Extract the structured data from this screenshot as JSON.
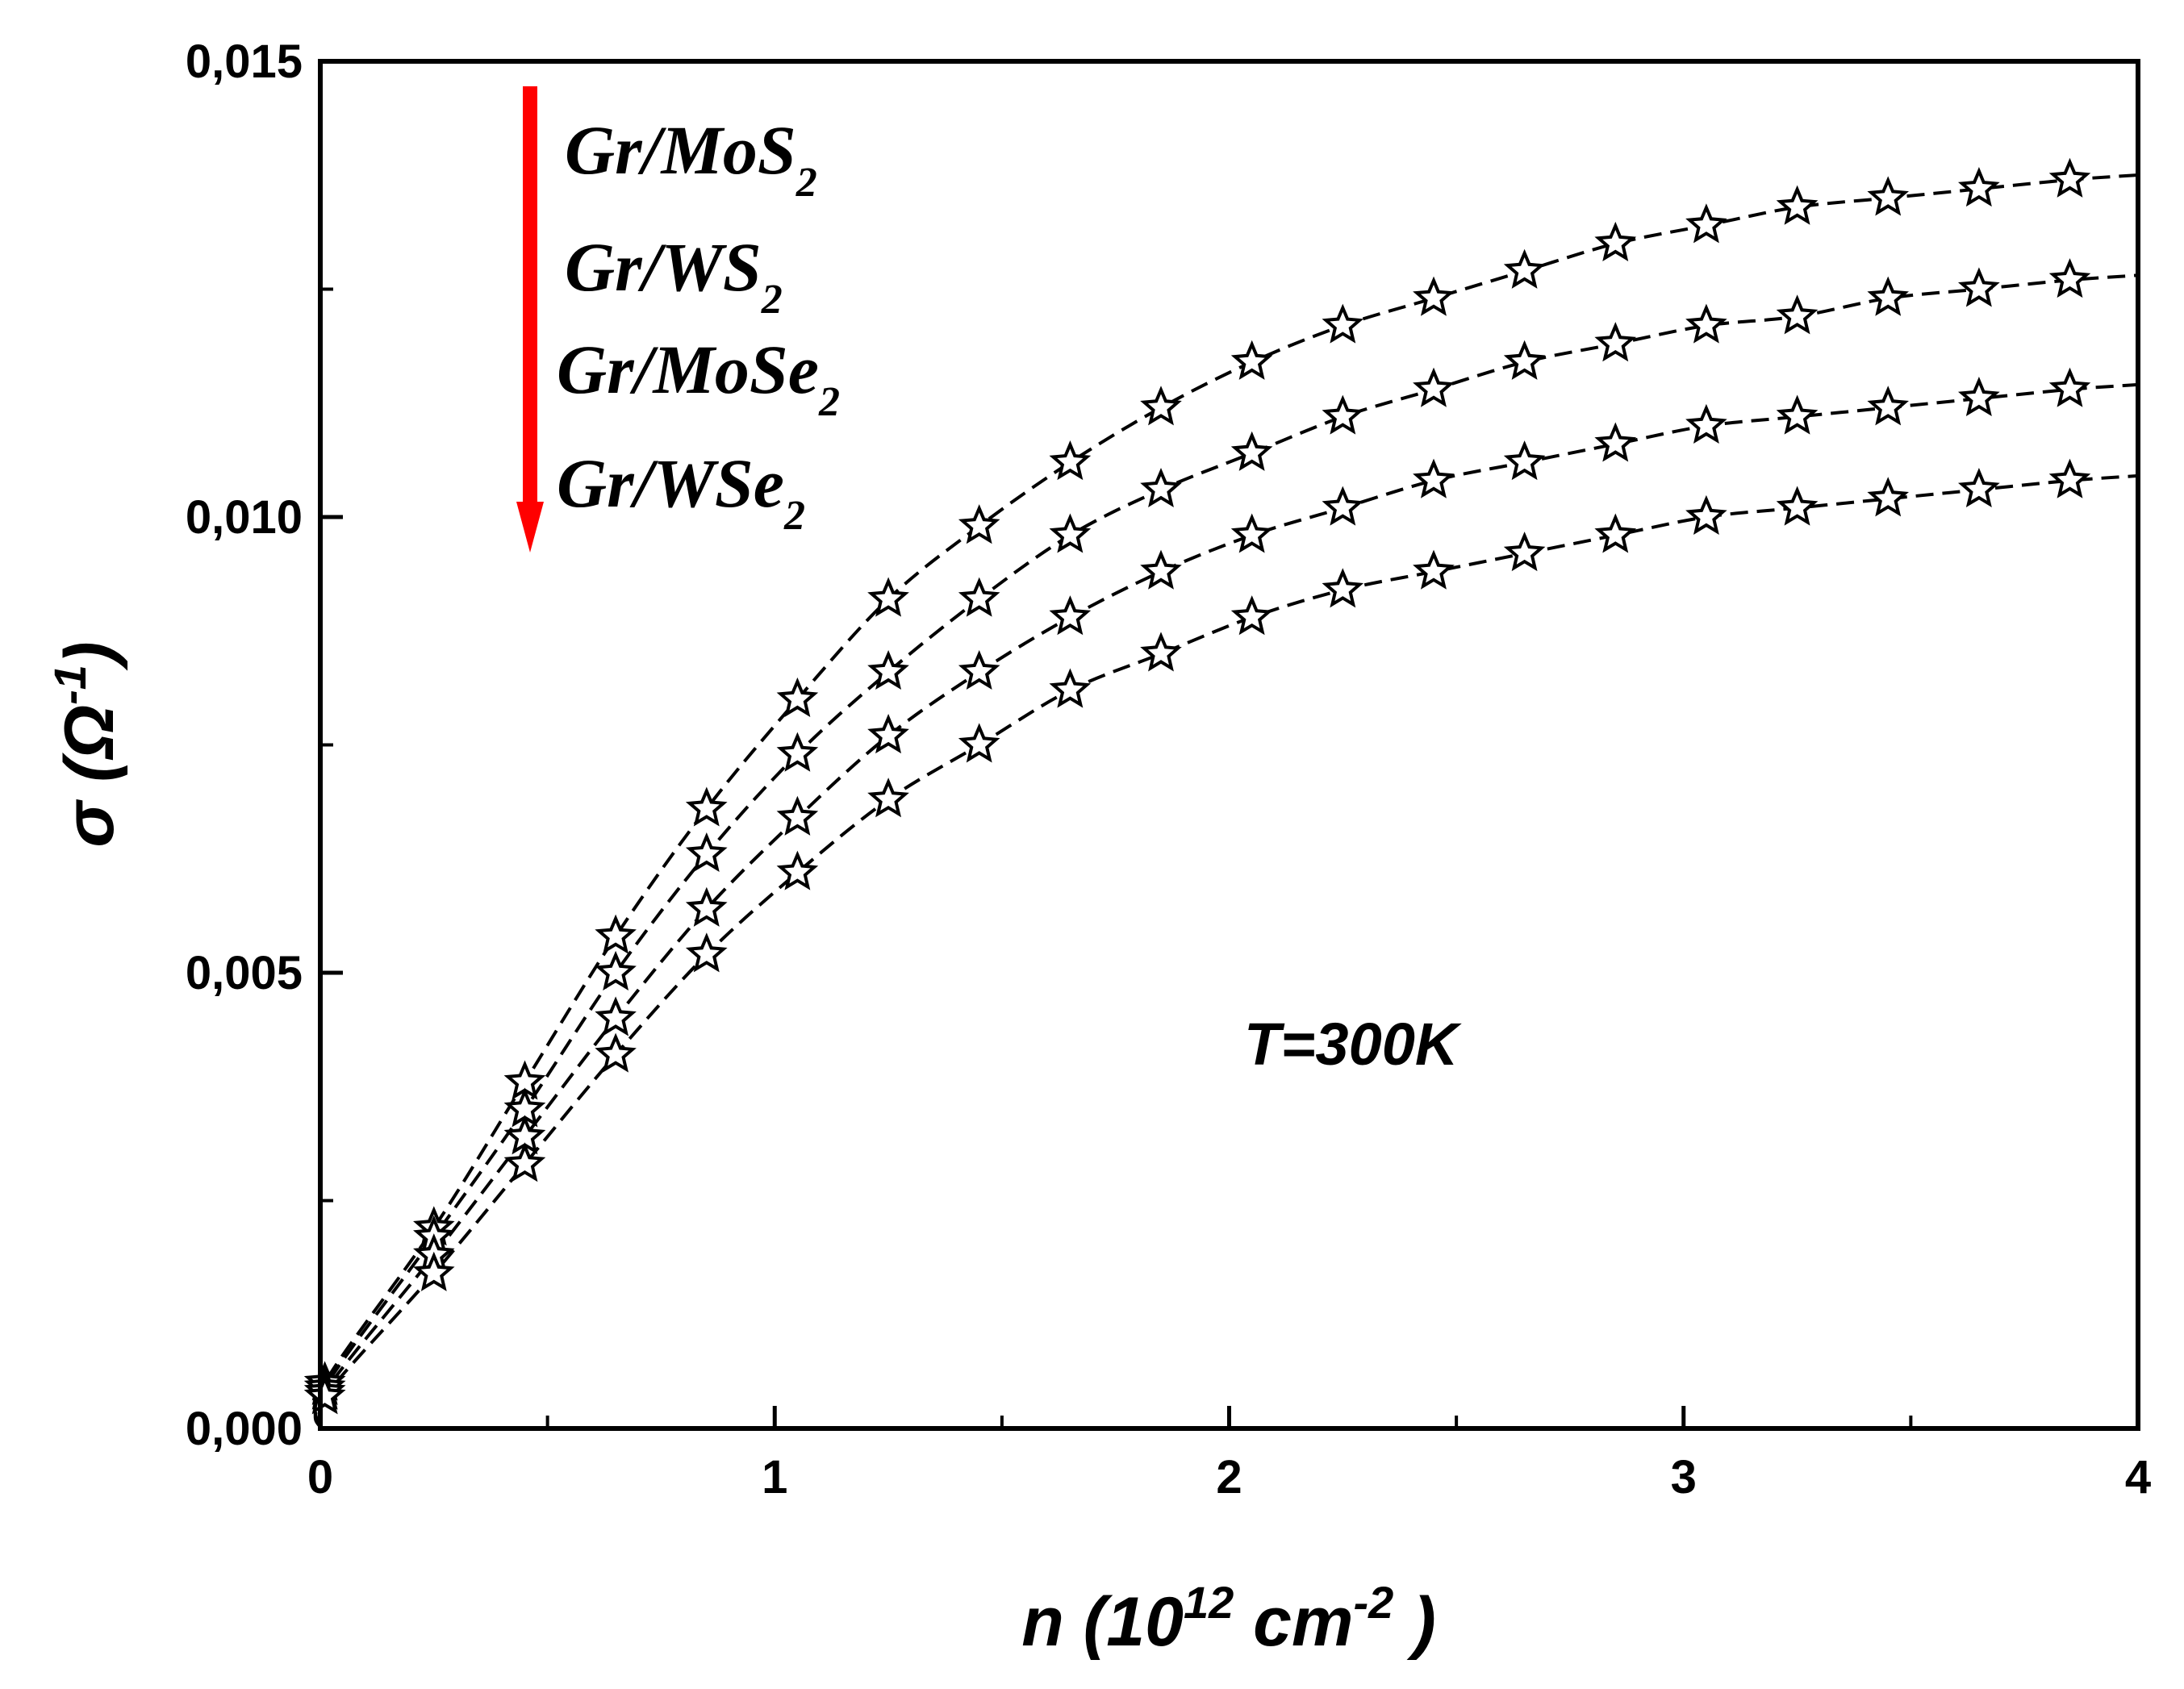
{
  "chart_data": {
    "type": "scatter",
    "title": "",
    "xlabel": {
      "base": "n (10",
      "sup1": "12",
      "mid": " cm",
      "sup2": "-2",
      "end": " )"
    },
    "ylabel": {
      "base": "σ (Ω",
      "sup": "-1",
      "end": ")"
    },
    "xlim": [
      0,
      4
    ],
    "ylim": [
      0,
      0.015
    ],
    "x_ticks": [
      "0",
      "1",
      "2",
      "3",
      "4"
    ],
    "y_ticks": [
      "0,000",
      "0,005",
      "0,010",
      "0,015"
    ],
    "annotation": "T=300K",
    "arrow_color": "#ff0000",
    "line_style": "dashed",
    "marker": "star",
    "x": [
      0.01,
      0.25,
      0.45,
      0.65,
      0.85,
      1.05,
      1.25,
      1.45,
      1.65,
      1.85,
      2.05,
      2.25,
      2.45,
      2.65,
      2.85,
      3.05,
      3.25,
      3.45,
      3.65,
      3.85
    ],
    "series": [
      {
        "name": "Gr/MoS2",
        "label_base": "Gr/MoS",
        "label_sub": "2",
        "values": [
          0.0005,
          0.0022,
          0.0038,
          0.0054,
          0.0068,
          0.008,
          0.0091,
          0.0099,
          0.0106,
          0.0112,
          0.0117,
          0.0121,
          0.0124,
          0.0127,
          0.013,
          0.0132,
          0.0134,
          0.0135,
          0.0136,
          0.0137
        ]
      },
      {
        "name": "Gr/WS2",
        "label_base": "Gr/WS",
        "label_sub": "2",
        "values": [
          0.00045,
          0.0021,
          0.0035,
          0.005,
          0.0063,
          0.0074,
          0.0083,
          0.0091,
          0.0098,
          0.0103,
          0.0107,
          0.0111,
          0.0114,
          0.0117,
          0.0119,
          0.0121,
          0.0122,
          0.0124,
          0.0125,
          0.0126
        ]
      },
      {
        "name": "Gr/MoSe2",
        "label_base": "Gr/MoSe",
        "label_sub": "2",
        "values": [
          0.0004,
          0.0019,
          0.0032,
          0.0045,
          0.0057,
          0.0067,
          0.0076,
          0.0083,
          0.0089,
          0.0094,
          0.0098,
          0.0101,
          0.0104,
          0.0106,
          0.0108,
          0.011,
          0.0111,
          0.0112,
          0.0113,
          0.0114
        ]
      },
      {
        "name": "Gr/WSe2",
        "label_base": "Gr/WSe",
        "label_sub": "2",
        "values": [
          0.00035,
          0.0017,
          0.0029,
          0.0041,
          0.0052,
          0.0061,
          0.0069,
          0.0075,
          0.0081,
          0.0085,
          0.0089,
          0.0092,
          0.0094,
          0.0096,
          0.0098,
          0.01,
          0.0101,
          0.0102,
          0.0103,
          0.0104
        ]
      }
    ]
  }
}
